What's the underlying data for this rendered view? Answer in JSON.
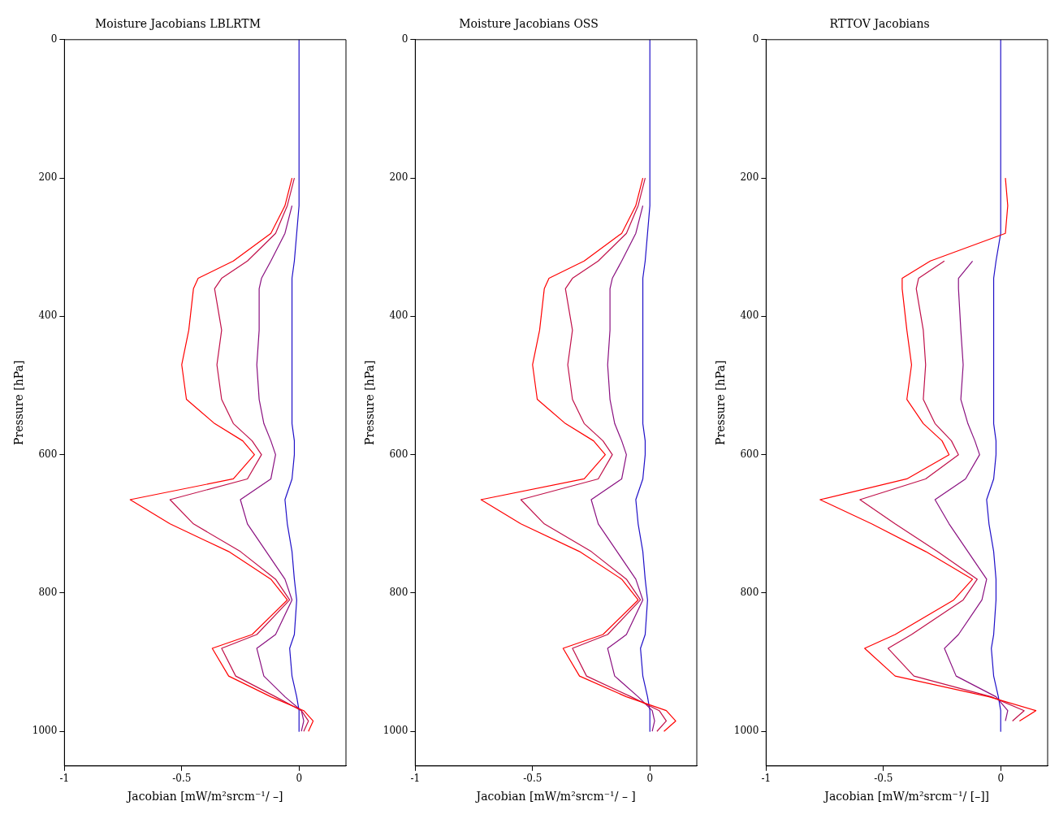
{
  "chart_data": [
    {
      "type": "line",
      "title": "Moisture Jacobians LBLRTM",
      "xlabel": "Jacobian [mW/m²srcm⁻¹/ –]",
      "ylabel": "Pressure [hPa]",
      "xlim": [
        -1,
        0.2
      ],
      "xticks": [
        -1,
        -0.5,
        0
      ],
      "ylim": [
        1050,
        0
      ],
      "yticks": [
        0,
        200,
        400,
        600,
        800,
        1000
      ],
      "series": [
        {
          "color": "#ff0000",
          "x": [
            -0.03,
            -0.06,
            -0.12,
            -0.28,
            -0.43,
            -0.45,
            -0.47,
            -0.5,
            -0.48,
            -0.36,
            -0.24,
            -0.19,
            -0.28,
            -0.72,
            -0.55,
            -0.3,
            -0.12,
            -0.05,
            -0.2,
            -0.37,
            -0.3,
            -0.12,
            0.02,
            0.06,
            0.04
          ],
          "values": [
            200,
            240,
            280,
            320,
            345,
            360,
            420,
            470,
            520,
            555,
            580,
            600,
            635,
            665,
            700,
            740,
            780,
            810,
            860,
            880,
            920,
            950,
            970,
            985,
            1000
          ]
        },
        {
          "color": "#c0104a",
          "x": [
            -0.02,
            -0.05,
            -0.1,
            -0.22,
            -0.33,
            -0.36,
            -0.33,
            -0.35,
            -0.33,
            -0.28,
            -0.2,
            -0.16,
            -0.22,
            -0.55,
            -0.45,
            -0.25,
            -0.1,
            -0.04,
            -0.18,
            -0.33,
            -0.27,
            -0.1,
            0.01,
            0.04,
            0.02
          ],
          "values": [
            200,
            240,
            280,
            320,
            345,
            360,
            420,
            470,
            520,
            555,
            580,
            600,
            635,
            665,
            700,
            740,
            780,
            810,
            860,
            880,
            920,
            950,
            970,
            985,
            1000
          ]
        },
        {
          "color": "#8a1080",
          "x": [
            -0.03,
            -0.06,
            -0.12,
            -0.16,
            -0.17,
            -0.17,
            -0.18,
            -0.17,
            -0.15,
            -0.12,
            -0.1,
            -0.12,
            -0.25,
            -0.22,
            -0.14,
            -0.06,
            -0.03,
            -0.1,
            -0.18,
            -0.15,
            -0.06,
            0.01,
            0.02,
            0.01
          ],
          "values": [
            240,
            280,
            320,
            345,
            360,
            420,
            470,
            520,
            555,
            580,
            600,
            635,
            665,
            700,
            740,
            780,
            810,
            860,
            880,
            920,
            950,
            970,
            985,
            1000
          ]
        },
        {
          "color": "#2010c8",
          "x": [
            0,
            0,
            0,
            0,
            0,
            -0.01,
            -0.02,
            -0.03,
            -0.03,
            -0.03,
            -0.03,
            -0.03,
            -0.03,
            -0.02,
            -0.02,
            -0.03,
            -0.06,
            -0.05,
            -0.03,
            -0.02,
            -0.01,
            -0.02,
            -0.04,
            -0.03,
            -0.01,
            0,
            0,
            0
          ],
          "values": [
            0,
            100,
            170,
            200,
            240,
            280,
            320,
            345,
            360,
            420,
            470,
            520,
            555,
            580,
            600,
            635,
            665,
            700,
            740,
            780,
            810,
            860,
            880,
            920,
            950,
            970,
            985,
            1000
          ]
        }
      ]
    },
    {
      "type": "line",
      "title": "Moisture Jacobians OSS",
      "xlabel": "Jacobian [mW/m²srcm⁻¹/ – ]",
      "ylabel": "Pressure [hPa]",
      "xlim": [
        -1,
        0.2
      ],
      "xticks": [
        -1,
        -0.5,
        0
      ],
      "ylim": [
        1050,
        0
      ],
      "yticks": [
        0,
        200,
        400,
        600,
        800,
        1000
      ],
      "series": [
        {
          "color": "#ff0000",
          "x": [
            -0.03,
            -0.06,
            -0.12,
            -0.28,
            -0.43,
            -0.45,
            -0.47,
            -0.5,
            -0.48,
            -0.36,
            -0.24,
            -0.19,
            -0.28,
            -0.72,
            -0.55,
            -0.3,
            -0.12,
            -0.05,
            -0.2,
            -0.37,
            -0.3,
            -0.1,
            0.07,
            0.11,
            0.06
          ],
          "values": [
            200,
            240,
            280,
            320,
            345,
            360,
            420,
            470,
            520,
            555,
            580,
            600,
            635,
            665,
            700,
            740,
            780,
            810,
            860,
            880,
            920,
            950,
            970,
            985,
            1000
          ]
        },
        {
          "color": "#c0104a",
          "x": [
            -0.02,
            -0.05,
            -0.1,
            -0.22,
            -0.33,
            -0.36,
            -0.33,
            -0.35,
            -0.33,
            -0.28,
            -0.2,
            -0.16,
            -0.22,
            -0.55,
            -0.45,
            -0.25,
            -0.1,
            -0.04,
            -0.18,
            -0.33,
            -0.27,
            -0.08,
            0.04,
            0.07,
            0.03
          ],
          "values": [
            200,
            240,
            280,
            320,
            345,
            360,
            420,
            470,
            520,
            555,
            580,
            600,
            635,
            665,
            700,
            740,
            780,
            810,
            860,
            880,
            920,
            950,
            970,
            985,
            1000
          ]
        },
        {
          "color": "#8a1080",
          "x": [
            -0.03,
            -0.06,
            -0.12,
            -0.16,
            -0.17,
            -0.17,
            -0.18,
            -0.17,
            -0.15,
            -0.12,
            -0.1,
            -0.12,
            -0.25,
            -0.22,
            -0.14,
            -0.06,
            -0.03,
            -0.1,
            -0.18,
            -0.15,
            -0.05,
            0.01,
            0.02,
            0.01
          ],
          "values": [
            240,
            280,
            320,
            345,
            360,
            420,
            470,
            520,
            555,
            580,
            600,
            635,
            665,
            700,
            740,
            780,
            810,
            860,
            880,
            920,
            950,
            970,
            985,
            1000
          ]
        },
        {
          "color": "#2010c8",
          "x": [
            0,
            0,
            0,
            0,
            0,
            -0.01,
            -0.02,
            -0.03,
            -0.03,
            -0.03,
            -0.03,
            -0.03,
            -0.03,
            -0.02,
            -0.02,
            -0.03,
            -0.06,
            -0.05,
            -0.03,
            -0.02,
            -0.01,
            -0.02,
            -0.04,
            -0.03,
            -0.01,
            0,
            0,
            0
          ],
          "values": [
            0,
            100,
            170,
            200,
            240,
            280,
            320,
            345,
            360,
            420,
            470,
            520,
            555,
            580,
            600,
            635,
            665,
            700,
            740,
            780,
            810,
            860,
            880,
            920,
            950,
            970,
            985,
            1000
          ]
        }
      ]
    },
    {
      "type": "line",
      "title": "RTTOV Jacobians",
      "xlabel": "Jacobian [mW/m²srcm⁻¹/ [–]]",
      "ylabel": "Pressure [hPa]",
      "xlim": [
        -1,
        0.2
      ],
      "xticks": [
        -1,
        -0.5,
        0
      ],
      "ylim": [
        1050,
        0
      ],
      "yticks": [
        0,
        200,
        400,
        600,
        800,
        1000
      ],
      "series": [
        {
          "color": "#ff0000",
          "x": [
            0.02,
            0.03,
            0.02,
            -0.3,
            -0.42,
            -0.42,
            -0.4,
            -0.38,
            -0.4,
            -0.33,
            -0.25,
            -0.22,
            -0.4,
            -0.77,
            -0.55,
            -0.32,
            -0.12,
            -0.2,
            -0.45,
            -0.58,
            -0.45,
            -0.05,
            0.15,
            0.08
          ],
          "values": [
            200,
            240,
            280,
            320,
            345,
            360,
            420,
            470,
            520,
            555,
            580,
            600,
            635,
            665,
            700,
            740,
            780,
            810,
            860,
            880,
            920,
            950,
            970,
            985
          ]
        },
        {
          "color": "#c0104a",
          "x": [
            -0.24,
            -0.35,
            -0.36,
            -0.33,
            -0.32,
            -0.33,
            -0.28,
            -0.21,
            -0.18,
            -0.32,
            -0.6,
            -0.45,
            -0.27,
            -0.1,
            -0.16,
            -0.38,
            -0.48,
            -0.37,
            -0.04,
            0.1,
            0.05
          ],
          "values": [
            320,
            345,
            360,
            420,
            470,
            520,
            555,
            580,
            600,
            635,
            665,
            700,
            740,
            780,
            810,
            860,
            880,
            920,
            950,
            970,
            985
          ]
        },
        {
          "color": "#8a1080",
          "x": [
            -0.12,
            -0.18,
            -0.18,
            -0.17,
            -0.16,
            -0.17,
            -0.14,
            -0.11,
            -0.09,
            -0.15,
            -0.28,
            -0.22,
            -0.14,
            -0.06,
            -0.08,
            -0.18,
            -0.24,
            -0.19,
            -0.02,
            0.03,
            0.02
          ],
          "values": [
            320,
            345,
            360,
            420,
            470,
            520,
            555,
            580,
            600,
            635,
            665,
            700,
            740,
            780,
            810,
            860,
            880,
            920,
            950,
            970,
            985
          ]
        },
        {
          "color": "#2010c8",
          "x": [
            0,
            0,
            0,
            0,
            0,
            0,
            -0.02,
            -0.03,
            -0.03,
            -0.03,
            -0.03,
            -0.03,
            -0.03,
            -0.02,
            -0.02,
            -0.03,
            -0.06,
            -0.05,
            -0.03,
            -0.02,
            -0.02,
            -0.03,
            -0.04,
            -0.03,
            -0.01,
            0,
            0,
            0
          ],
          "values": [
            0,
            100,
            170,
            200,
            240,
            280,
            320,
            345,
            360,
            420,
            470,
            520,
            555,
            580,
            600,
            635,
            665,
            700,
            740,
            780,
            810,
            860,
            880,
            920,
            950,
            970,
            985,
            1000
          ]
        }
      ]
    }
  ]
}
